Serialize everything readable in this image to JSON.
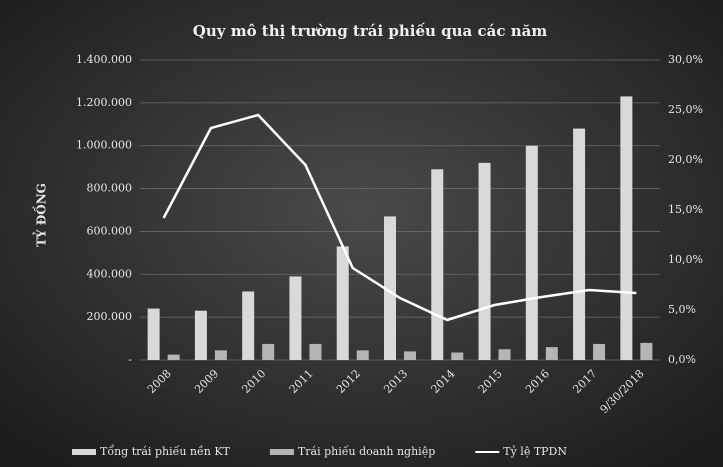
{
  "chart_data": {
    "type": "bar",
    "title": "Quy mô thị trường trái phiếu qua các năm",
    "y_label": "TỶ ĐỒNG",
    "categories": [
      "2008",
      "2009",
      "2010",
      "2011",
      "2012",
      "2013",
      "2014",
      "2015",
      "2016",
      "2017",
      "9/30/2018"
    ],
    "series": [
      {
        "name": "Tổng trái phiếu nền KT",
        "color": "#d9d9d9",
        "values": [
          240000,
          230000,
          320000,
          390000,
          530000,
          670000,
          890000,
          920000,
          1000000,
          1080000,
          1230000
        ]
      },
      {
        "name": "Trái phiếu doanh nghiệp",
        "color": "#b5b5b5",
        "values": [
          25000,
          45000,
          75000,
          75000,
          45000,
          40000,
          35000,
          50000,
          60000,
          75000,
          80000
        ]
      },
      {
        "name": "Tỷ lệ TPDN",
        "color": "#ffffff",
        "type": "line",
        "axis": "y2",
        "values": [
          14.2,
          23.2,
          24.5,
          19.5,
          9.2,
          6.2,
          4.0,
          5.5,
          6.3,
          7.0,
          6.7
        ]
      }
    ],
    "ylim": [
      0,
      1400000
    ],
    "yticks": [
      {
        "value": 0,
        "label": "-"
      },
      {
        "value": 200000,
        "label": "200.000"
      },
      {
        "value": 400000,
        "label": "400.000"
      },
      {
        "value": 600000,
        "label": "600.000"
      },
      {
        "value": 800000,
        "label": "800.000"
      },
      {
        "value": 1000000,
        "label": "1.000.000"
      },
      {
        "value": 1200000,
        "label": "1.200.000"
      },
      {
        "value": 1400000,
        "label": "1.400.000"
      }
    ],
    "y2lim": [
      0,
      30
    ],
    "y2ticks": [
      {
        "value": 0,
        "label": "0,0%"
      },
      {
        "value": 5,
        "label": "5,0%"
      },
      {
        "value": 10,
        "label": "10,0%"
      },
      {
        "value": 15,
        "label": "15,0%"
      },
      {
        "value": 20,
        "label": "20,0%"
      },
      {
        "value": 25,
        "label": "25,0%"
      },
      {
        "value": 30,
        "label": "30,0%"
      }
    ],
    "grid": true
  }
}
